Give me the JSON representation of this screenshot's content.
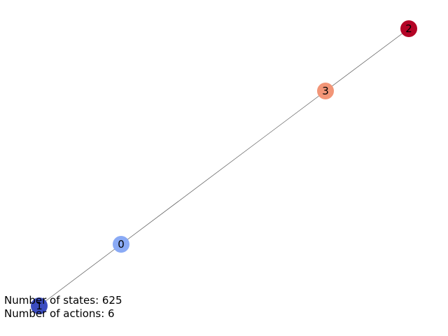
{
  "graph": {
    "nodes": [
      {
        "id": "0",
        "label": "0",
        "color": "#8aaaf5"
      },
      {
        "id": "1",
        "label": "1",
        "color": "#3b4cc0"
      },
      {
        "id": "2",
        "label": "2",
        "color": "#b40426"
      },
      {
        "id": "3",
        "label": "3",
        "color": "#f29577"
      }
    ],
    "edges": [
      {
        "source": "1",
        "target": "0"
      },
      {
        "source": "0",
        "target": "3"
      },
      {
        "source": "3",
        "target": "2"
      }
    ],
    "edge_color": "#555555"
  },
  "info": {
    "states_line": "Number of states: 625",
    "actions_line": "Number of actions: 6"
  }
}
